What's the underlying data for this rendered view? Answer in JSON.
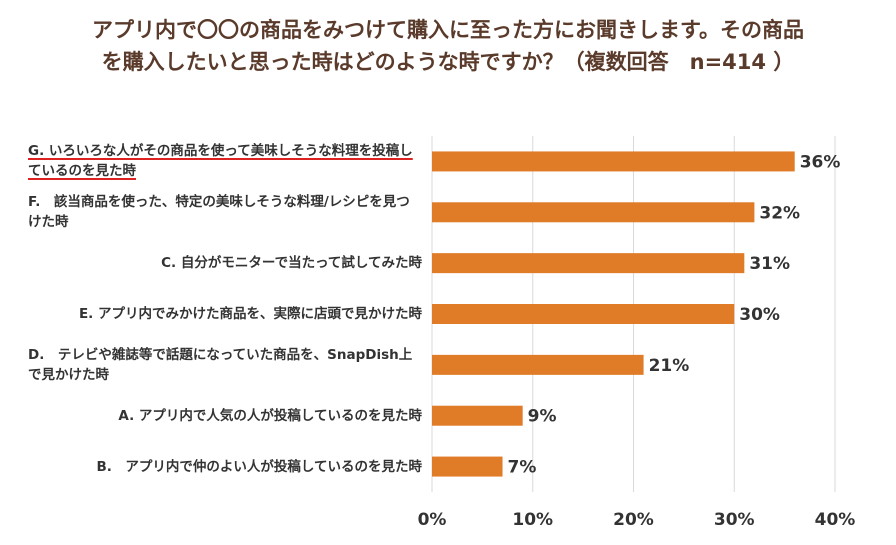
{
  "chart_data": {
    "type": "hbar",
    "title": "アプリ内で〇〇の商品をみつけて購入に至った方にお聞きします。その商品を購入したいと思った時はどのような時ですか？（複数回答　n=414 ）",
    "categories": [
      "G. いろいろな人がその商品を使って美味しそうな料理を投稿しているのを見た時",
      "F.　該当商品を使った、特定の美味しそうな料理/レシピを見つけた時",
      "C. 自分がモニターで当たって試してみた時",
      "E. アプリ内でみかけた商品を、実際に店頭で見かけた時",
      "D.　テレビや雑誌等で話題になっていた商品を、SnapDish上で見かけた時",
      "A. アプリ内で人気の人が投稿しているのを見た時",
      "B.　アプリ内で仲のよい人が投稿しているのを見た時"
    ],
    "values": [
      36,
      32,
      31,
      30,
      21,
      9,
      7
    ],
    "value_labels": [
      "36%",
      "32%",
      "31%",
      "30%",
      "21%",
      "9%",
      "7%"
    ],
    "color": "#e07b28",
    "xlim": [
      0,
      40
    ],
    "xticks": [
      {
        "value": 0,
        "label": "0%"
      },
      {
        "value": 10,
        "label": "10%"
      },
      {
        "value": 20,
        "label": "20%"
      },
      {
        "value": 30,
        "label": "30%"
      },
      {
        "value": 40,
        "label": "40%"
      }
    ],
    "grid": true
  }
}
